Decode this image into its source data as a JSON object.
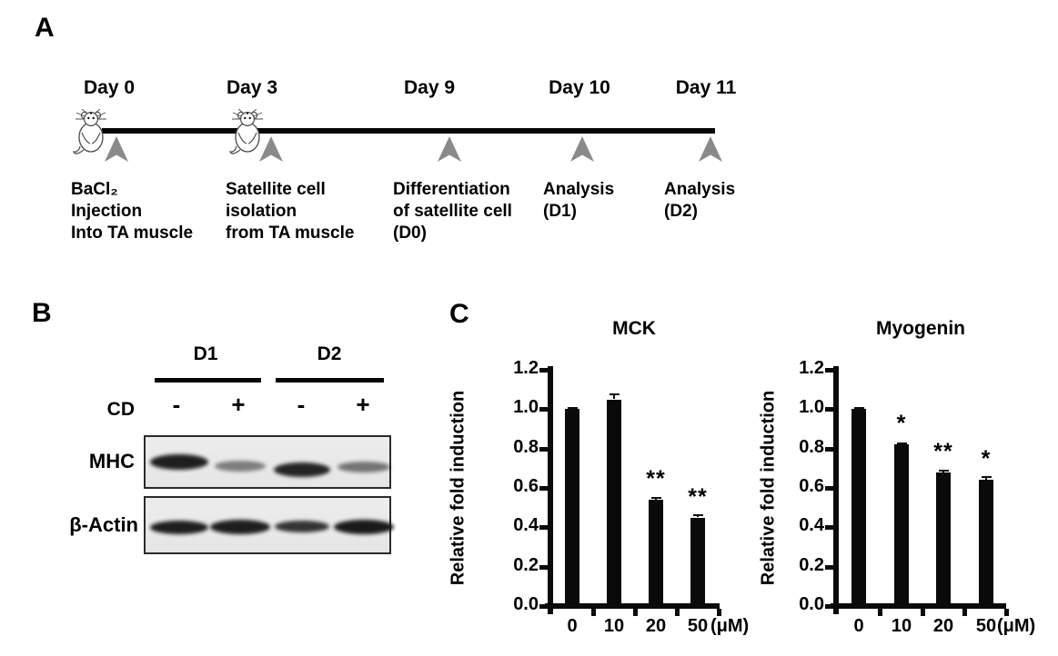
{
  "panels": {
    "a": {
      "label": "A",
      "events": [
        {
          "day": "Day 0",
          "mouse": true,
          "desc": [
            "BaCl₂",
            "Injection",
            "Into TA muscle"
          ]
        },
        {
          "day": "Day 3",
          "mouse": true,
          "desc": [
            "Satellite cell",
            "isolation",
            "from TA muscle"
          ]
        },
        {
          "day": "Day 9",
          "mouse": false,
          "desc": [
            "Differentiation",
            "of satellite cell",
            "(D0)"
          ]
        },
        {
          "day": "Day 10",
          "mouse": false,
          "desc": [
            "Analysis",
            "(D1)"
          ]
        },
        {
          "day": "Day 11",
          "mouse": false,
          "desc": [
            "Analysis",
            "(D2)"
          ]
        }
      ]
    },
    "b": {
      "label": "B",
      "groups": [
        "D1",
        "D2"
      ],
      "treatment_label": "CD",
      "conditions": [
        "-",
        "+",
        "-",
        "+"
      ],
      "rows": [
        {
          "label": "MHC",
          "band_intensities": [
            0.95,
            0.5,
            0.92,
            0.55
          ]
        },
        {
          "label": "β-Actin",
          "band_intensities": [
            0.95,
            0.95,
            0.85,
            0.97
          ]
        }
      ]
    },
    "c": {
      "label": "C"
    }
  },
  "chart_data": [
    {
      "type": "bar",
      "title": "MCK",
      "categories": [
        "0",
        "10",
        "20",
        "50"
      ],
      "values": [
        1.0,
        1.05,
        0.54,
        0.45
      ],
      "errors": [
        0.005,
        0.025,
        0.01,
        0.01
      ],
      "significance": [
        "",
        "",
        "**",
        "**"
      ],
      "unit": "(μM)",
      "ylabel": "Relative fold induction",
      "ylim": [
        0,
        1.2
      ],
      "yticks": [
        "0.0",
        "0.2",
        "0.4",
        "0.6",
        "0.8",
        "1.0",
        "1.2"
      ],
      "grid": false,
      "legend": "none",
      "bar_color": "#0a0a0a"
    },
    {
      "type": "bar",
      "title": "Myogenin",
      "categories": [
        "0",
        "10",
        "20",
        "50"
      ],
      "values": [
        1.0,
        0.82,
        0.68,
        0.64
      ],
      "errors": [
        0.005,
        0.008,
        0.008,
        0.015
      ],
      "significance": [
        "",
        "*",
        "**",
        "*"
      ],
      "unit": "(μM)",
      "ylabel": "Relative fold induction",
      "ylim": [
        0,
        1.2
      ],
      "yticks": [
        "0.0",
        "0.2",
        "0.4",
        "0.6",
        "0.8",
        "1.0",
        "1.2"
      ],
      "grid": false,
      "legend": "none",
      "bar_color": "#0a0a0a"
    }
  ]
}
